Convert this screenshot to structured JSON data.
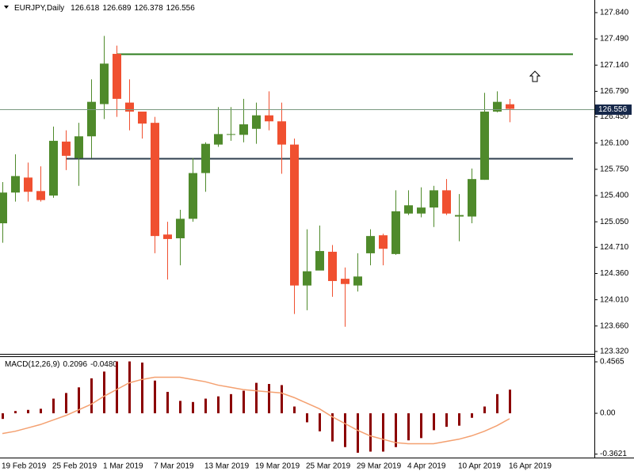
{
  "chart_data": [
    {
      "type": "candlestick",
      "title": "EURJPY,Daily",
      "categories": [
        "19 Feb 2019",
        null,
        null,
        null,
        "25 Feb 2019",
        null,
        null,
        null,
        "1 Mar 2019",
        null,
        null,
        null,
        "7 Mar 2019",
        null,
        null,
        null,
        "13 Mar 2019",
        null,
        null,
        null,
        "19 Mar 2019",
        null,
        null,
        null,
        "25 Mar 2019",
        null,
        null,
        null,
        "29 Mar 2019",
        null,
        null,
        null,
        "4 Apr 2019",
        null,
        null,
        null,
        "10 Apr 2019",
        null,
        null,
        null,
        "16 Apr 2019"
      ],
      "open": [
        125.03,
        125.44,
        125.64,
        125.46,
        125.4,
        126.12,
        125.9,
        126.19,
        126.62,
        127.29,
        126.64,
        126.52,
        126.37,
        124.88,
        124.83,
        125.09,
        125.7,
        126.08,
        126.21,
        126.21,
        126.29,
        126.47,
        126.39,
        126.08,
        124.2,
        124.4,
        124.65,
        124.29,
        124.2,
        124.63,
        124.87,
        124.62,
        125.16,
        125.16,
        125.24,
        125.47,
        125.12,
        125.12,
        125.61,
        126.52,
        126.618
      ],
      "high": [
        125.58,
        125.95,
        125.84,
        125.79,
        126.32,
        126.27,
        126.37,
        126.95,
        127.53,
        127.4,
        126.95,
        126.52,
        126.45,
        125.05,
        125.21,
        125.9,
        126.11,
        126.58,
        126.58,
        126.69,
        126.64,
        126.79,
        126.64,
        126.16,
        124.95,
        125.0,
        124.74,
        124.44,
        124.63,
        124.95,
        124.89,
        125.47,
        125.47,
        125.51,
        125.53,
        125.62,
        125.42,
        125.76,
        126.77,
        126.79,
        126.689
      ],
      "low": [
        124.77,
        125.32,
        125.32,
        125.32,
        125.37,
        125.74,
        125.53,
        125.9,
        126.42,
        126.45,
        126.27,
        126.16,
        124.63,
        124.28,
        124.47,
        125.05,
        125.45,
        126.05,
        126.13,
        126.11,
        126.09,
        126.27,
        125.69,
        123.82,
        123.87,
        124.42,
        124.05,
        123.65,
        124.12,
        124.47,
        124.47,
        124.61,
        125.14,
        125.11,
        124.98,
        125.14,
        124.79,
        125.03,
        125.61,
        126.51,
        126.378
      ],
      "close": [
        125.44,
        125.66,
        125.45,
        125.34,
        126.13,
        125.93,
        126.19,
        126.65,
        127.16,
        126.69,
        126.52,
        126.36,
        124.86,
        124.82,
        125.09,
        125.7,
        126.09,
        126.22,
        126.22,
        126.35,
        126.47,
        126.39,
        126.08,
        124.2,
        124.39,
        124.66,
        124.26,
        124.22,
        124.32,
        124.86,
        124.69,
        125.19,
        125.27,
        125.24,
        125.47,
        125.16,
        125.14,
        125.62,
        126.52,
        126.65,
        126.556
      ],
      "up_color": "#4f8a2b",
      "down_color": "#f05030",
      "hlines": [
        {
          "value": 127.29,
          "color": "#2e7d1e"
        },
        {
          "value": 125.9,
          "color": "#2f3f4f"
        }
      ],
      "ylim": [
        123.288,
        127.998
      ],
      "yticks": [
        {
          "value": 127.84,
          "label": "127.840"
        },
        {
          "value": 127.49,
          "label": "127.490"
        },
        {
          "value": 127.14,
          "label": "127.140"
        },
        {
          "value": 126.79,
          "label": "126.790"
        },
        {
          "value": 126.45,
          "label": "126.450"
        },
        {
          "value": 126.1,
          "label": "126.100"
        },
        {
          "value": 125.75,
          "label": "125.750"
        },
        {
          "value": 125.4,
          "label": "125.400"
        },
        {
          "value": 125.05,
          "label": "125.050"
        },
        {
          "value": 124.71,
          "label": "124.710"
        },
        {
          "value": 124.36,
          "label": "124.360"
        },
        {
          "value": 124.01,
          "label": "124.010"
        },
        {
          "value": 123.66,
          "label": "123.660"
        },
        {
          "value": 123.32,
          "label": "123.320"
        }
      ],
      "grid": false
    },
    {
      "type": "macd",
      "title": "MACD(12,26,9)",
      "title_values": [
        "0.2096",
        "-0.0480"
      ],
      "series": [
        {
          "type": "bar",
          "color": "#8b0000",
          "values": [
            -0.05,
            0.02,
            0.03,
            0.04,
            0.13,
            0.18,
            0.23,
            0.31,
            0.37,
            0.46,
            0.46,
            0.45,
            0.29,
            0.19,
            0.11,
            0.1,
            0.13,
            0.15,
            0.17,
            0.2,
            0.27,
            0.26,
            0.25,
            0.06,
            -0.08,
            -0.16,
            -0.25,
            -0.3,
            -0.35,
            -0.34,
            -0.34,
            -0.3,
            -0.24,
            -0.22,
            -0.15,
            -0.12,
            -0.11,
            -0.04,
            0.06,
            0.17,
            0.2096
          ]
        },
        {
          "type": "line",
          "color": "#f4a070",
          "values": [
            -0.18,
            -0.16,
            -0.13,
            -0.1,
            -0.06,
            -0.02,
            0.03,
            0.08,
            0.15,
            0.21,
            0.27,
            0.3,
            0.32,
            0.32,
            0.32,
            0.3,
            0.28,
            0.25,
            0.23,
            0.21,
            0.2,
            0.19,
            0.18,
            0.14,
            0.09,
            0.04,
            -0.03,
            -0.09,
            -0.15,
            -0.2,
            -0.23,
            -0.26,
            -0.27,
            -0.27,
            -0.27,
            -0.25,
            -0.23,
            -0.2,
            -0.16,
            -0.11,
            -0.048
          ]
        }
      ],
      "ylim": [
        -0.393,
        0.506
      ],
      "yticks": [
        0.4565,
        {
          "value": 0,
          "label": "0.00"
        },
        -0.3621
      ],
      "grid": false
    }
  ]
}
